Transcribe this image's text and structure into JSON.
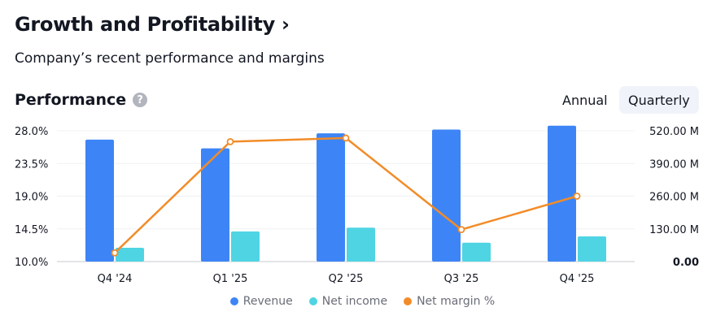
{
  "header": {
    "title": "Growth and Profitability",
    "chevron": "›",
    "subtitle": "Company’s recent performance and margins"
  },
  "performance": {
    "label": "Performance",
    "help_icon": "?",
    "toggles": [
      {
        "label": "Annual",
        "selected": false
      },
      {
        "label": "Quarterly",
        "selected": true
      }
    ]
  },
  "colors": {
    "revenue": "#3d85f6",
    "net_income": "#4fd4e3",
    "net_margin": "#f28c28"
  },
  "chart_data": {
    "type": "bar",
    "categories": [
      "Q4 '24",
      "Q1 '25",
      "Q2 '25",
      "Q3 '25",
      "Q4 '25"
    ],
    "series": [
      {
        "name": "Revenue",
        "axis": "right",
        "values": [
          485,
          450,
          510,
          525,
          540
        ]
      },
      {
        "name": "Net income",
        "axis": "right",
        "values": [
          55,
          120,
          135,
          75,
          100
        ]
      },
      {
        "name": "Net margin %",
        "axis": "left",
        "type": "line",
        "values": [
          11.2,
          26.5,
          27.0,
          14.4,
          19.0
        ]
      }
    ],
    "y_left": {
      "ticks": [
        "10.0%",
        "14.5%",
        "19.0%",
        "23.5%",
        "28.0%"
      ],
      "range": [
        10,
        28
      ]
    },
    "y_right": {
      "ticks": [
        "0.00",
        "130.00 M",
        "260.00 M",
        "390.00 M",
        "520.00 M"
      ],
      "range": [
        0,
        520
      ]
    },
    "grid": true,
    "legend": "bottom"
  }
}
